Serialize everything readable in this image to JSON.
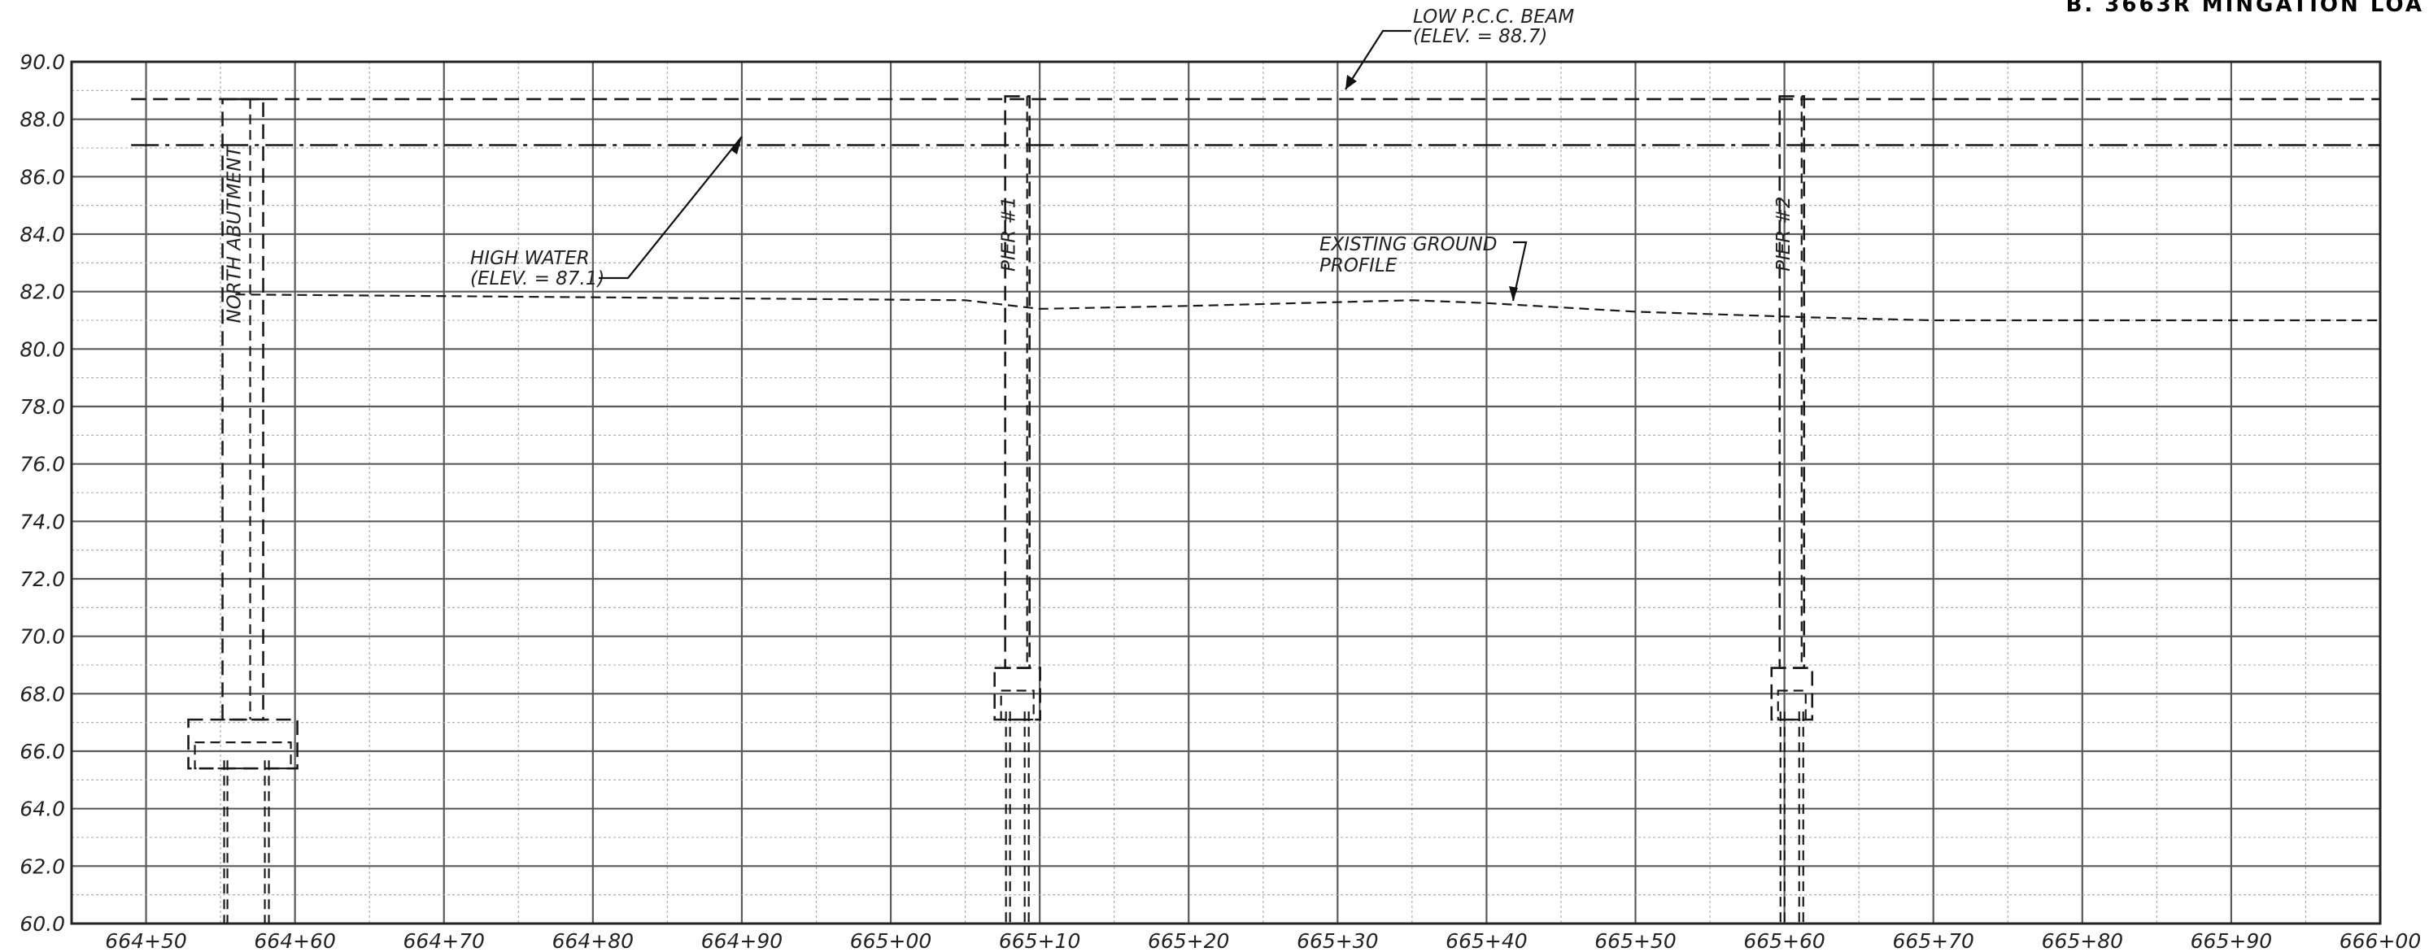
{
  "sheet": {
    "corner_title": "B. 3663R MINGATION LOA"
  },
  "chart_data": {
    "type": "line",
    "y_ticks": [
      "90.0",
      "88.0",
      "86.0",
      "84.0",
      "82.0",
      "80.0",
      "78.0",
      "76.0",
      "74.0",
      "72.0",
      "70.0",
      "68.0",
      "66.0",
      "64.0",
      "62.0",
      "60.0"
    ],
    "x_ticks": [
      "664+50",
      "664+60",
      "664+70",
      "664+80",
      "664+90",
      "665+00",
      "665+10",
      "665+20",
      "665+30",
      "665+40",
      "665+50",
      "665+60",
      "665+70",
      "665+80",
      "665+90",
      "666+00"
    ],
    "xlim": [
      66445,
      66600
    ],
    "ylim": [
      60,
      90
    ],
    "grid": true,
    "series": [
      {
        "name": "LOW P.C.C. BEAM",
        "x": [
          66449,
          66600
        ],
        "y": [
          88.7,
          88.7
        ]
      },
      {
        "name": "HIGH WATER",
        "x": [
          66449,
          66600
        ],
        "y": [
          87.1,
          87.1
        ]
      },
      {
        "name": "EXISTING GROUND PROFILE",
        "x": [
          66456,
          66505,
          66510,
          66520,
          66535,
          66540,
          66550,
          66562,
          66570,
          66580,
          66590,
          66600
        ],
        "y": [
          81.9,
          81.7,
          81.4,
          81.5,
          81.7,
          81.6,
          81.3,
          81.1,
          81.0,
          81.0,
          81.0,
          81.0
        ]
      }
    ],
    "supports": [
      {
        "label": "NORTH ABUTMENT",
        "x": 66456.5,
        "top_elev": 88.7,
        "footing_top": 67.1,
        "footing_bottom": 65.4
      },
      {
        "label": "PIER #1",
        "x": 66508.5,
        "top_elev": 88.8,
        "footing_top": 68.9,
        "footing_bottom": 67.1
      },
      {
        "label": "PIER #2",
        "x": 66560.5,
        "top_elev": 88.8,
        "footing_top": 68.9,
        "footing_bottom": 67.1
      }
    ],
    "annotations": {
      "beam_line1": "LOW P.C.C. BEAM",
      "beam_line2": "(ELEV. = 88.7)",
      "water_line1": "HIGH WATER",
      "water_line2": "(ELEV. = 87.1)",
      "ground_line1": "EXISTING GROUND",
      "ground_line2": "PROFILE"
    }
  }
}
